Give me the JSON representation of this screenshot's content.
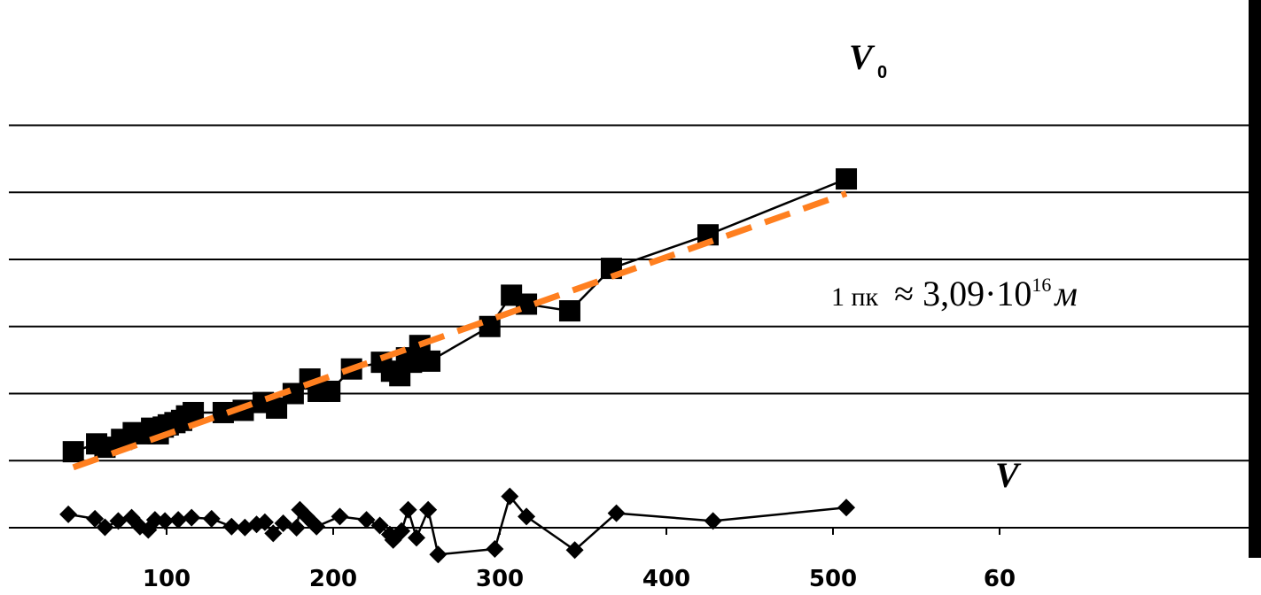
{
  "chart_data": {
    "type": "line",
    "x_ticks": [
      "100",
      "200",
      "300",
      "400",
      "500",
      "60"
    ],
    "xlim": [
      0,
      600
    ],
    "grid": "horizontal",
    "series": [
      {
        "name": "V",
        "subscript": "0",
        "marker": "square",
        "color": "#000000",
        "points": [
          [
            44,
            340
          ],
          [
            58,
            375
          ],
          [
            63,
            360
          ],
          [
            73,
            395
          ],
          [
            80,
            425
          ],
          [
            87,
            420
          ],
          [
            91,
            445
          ],
          [
            95,
            420
          ],
          [
            98,
            450
          ],
          [
            101,
            460
          ],
          [
            105,
            470
          ],
          [
            109,
            480
          ],
          [
            112,
            500
          ],
          [
            116,
            515
          ],
          [
            134,
            515
          ],
          [
            146,
            525
          ],
          [
            158,
            560
          ],
          [
            166,
            535
          ],
          [
            176,
            600
          ],
          [
            186,
            665
          ],
          [
            191,
            610
          ],
          [
            198,
            610
          ],
          [
            211,
            710
          ],
          [
            229,
            740
          ],
          [
            235,
            700
          ],
          [
            240,
            680
          ],
          [
            244,
            760
          ],
          [
            247,
            740
          ],
          [
            252,
            815
          ],
          [
            258,
            745
          ],
          [
            294,
            900
          ],
          [
            307,
            1040
          ],
          [
            316,
            1000
          ],
          [
            342,
            970
          ],
          [
            367,
            1160
          ],
          [
            425,
            1310
          ],
          [
            508,
            1560
          ]
        ]
      },
      {
        "name": "V",
        "marker": "diamond",
        "color": "#000000",
        "points": [
          [
            41,
            60
          ],
          [
            57,
            40
          ],
          [
            63,
            2
          ],
          [
            71,
            30
          ],
          [
            79,
            45
          ],
          [
            84,
            5
          ],
          [
            89,
            -10
          ],
          [
            93,
            35
          ],
          [
            99,
            30
          ],
          [
            107,
            35
          ],
          [
            115,
            45
          ],
          [
            127,
            40
          ],
          [
            139,
            5
          ],
          [
            147,
            1
          ],
          [
            154,
            15
          ],
          [
            159,
            25
          ],
          [
            164,
            -25
          ],
          [
            170,
            20
          ],
          [
            178,
            0
          ],
          [
            180,
            80
          ],
          [
            184,
            50
          ],
          [
            188,
            20
          ],
          [
            190,
            5
          ],
          [
            204,
            50
          ],
          [
            220,
            35
          ],
          [
            228,
            10
          ],
          [
            234,
            -30
          ],
          [
            236,
            -55
          ],
          [
            241,
            -15
          ],
          [
            245,
            80
          ],
          [
            250,
            -45
          ],
          [
            257,
            80
          ],
          [
            263,
            -120
          ],
          [
            297,
            -95
          ],
          [
            306,
            140
          ],
          [
            316,
            50
          ],
          [
            345,
            -100
          ],
          [
            370,
            65
          ],
          [
            428,
            30
          ],
          [
            508,
            90
          ]
        ]
      }
    ],
    "trendline": {
      "color": "#ff7f1f",
      "style": "dashed",
      "points": [
        [
          44,
          270
        ],
        [
          508,
          1495
        ]
      ]
    },
    "annotation": {
      "unit": "1 пк",
      "approx": "≈ 3,09·10",
      "exponent": "16",
      "symbol": "м"
    }
  }
}
